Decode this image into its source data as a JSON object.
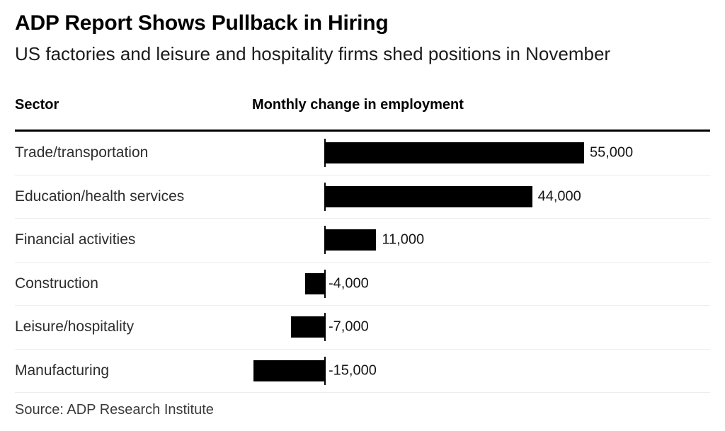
{
  "header": {
    "title": "ADP Report Shows Pullback in Hiring",
    "subtitle": "US factories and leisure and hospitality firms shed positions in November"
  },
  "columns": {
    "sector_header": "Sector",
    "value_header": "Monthly change in employment"
  },
  "chart_data": {
    "type": "bar",
    "orientation": "horizontal",
    "title": "ADP Report Shows Pullback in Hiring",
    "xlabel": "Monthly change in employment",
    "ylabel": "Sector",
    "categories": [
      "Trade/transportation",
      "Education/health services",
      "Financial activities",
      "Construction",
      "Leisure/hospitality",
      "Manufacturing"
    ],
    "values": [
      55000,
      44000,
      11000,
      -4000,
      -7000,
      -15000
    ],
    "value_labels": [
      "55,000",
      "44,000",
      "11,000",
      "-4,000",
      "-7,000",
      "-15,000"
    ],
    "baseline": 0,
    "xlim": [
      -16000,
      82000
    ],
    "grid": false,
    "legend": false,
    "bar_color": "#000000",
    "axis_color": "#000000",
    "separator_color": "#ededed"
  },
  "footer": {
    "source": "Source: ADP Research Institute"
  }
}
